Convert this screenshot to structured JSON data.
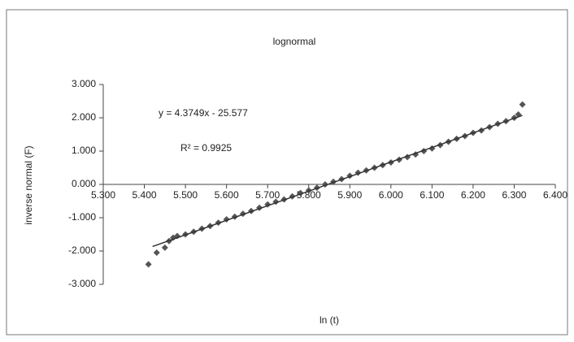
{
  "chart_data": {
    "type": "scatter",
    "title": "lognormal",
    "x_label": "ln (t)",
    "y_label": "inverse normal (F)",
    "annotations": [
      "y = 4.3749x - 25.577",
      "R² = 0.9925"
    ],
    "xlim": [
      5.3,
      6.4
    ],
    "ylim": [
      -3,
      3
    ],
    "xticks": [
      {
        "value": 5.3,
        "label": "5.300"
      },
      {
        "value": 5.4,
        "label": "5.400"
      },
      {
        "value": 5.5,
        "label": "5.500"
      },
      {
        "value": 5.6,
        "label": "5.600"
      },
      {
        "value": 5.7,
        "label": "5.700"
      },
      {
        "value": 5.8,
        "label": "5.800"
      },
      {
        "value": 5.9,
        "label": "5.900"
      },
      {
        "value": 6.0,
        "label": "6.000"
      },
      {
        "value": 6.1,
        "label": "6.100"
      },
      {
        "value": 6.2,
        "label": "6.200"
      },
      {
        "value": 6.3,
        "label": "6.300"
      },
      {
        "value": 6.4,
        "label": "6.400"
      }
    ],
    "yticks": [
      {
        "value": 3,
        "label": "3.000"
      },
      {
        "value": 2,
        "label": "2.000"
      },
      {
        "value": 1,
        "label": "1.000"
      },
      {
        "value": 0,
        "label": "0.000"
      },
      {
        "value": -1,
        "label": "-1.000"
      },
      {
        "value": -2,
        "label": "-2.000"
      },
      {
        "value": -3,
        "label": "-3.000"
      }
    ],
    "series": [
      {
        "color": "#555555",
        "x": [
          5.41,
          5.43,
          5.45,
          5.46,
          5.47,
          5.48,
          5.5,
          5.52,
          5.54,
          5.56,
          5.58,
          5.6,
          5.62,
          5.64,
          5.66,
          5.68,
          5.7,
          5.72,
          5.74,
          5.76,
          5.78,
          5.8,
          5.82,
          5.84,
          5.86,
          5.88,
          5.9,
          5.92,
          5.94,
          5.96,
          5.98,
          6.0,
          6.02,
          6.04,
          6.06,
          6.08,
          6.1,
          6.12,
          6.14,
          6.16,
          6.18,
          6.2,
          6.22,
          6.24,
          6.26,
          6.28,
          6.3,
          6.31,
          6.32
        ],
        "values": [
          -2.4,
          -2.05,
          -1.9,
          -1.7,
          -1.6,
          -1.55,
          -1.5,
          -1.42,
          -1.33,
          -1.25,
          -1.15,
          -1.05,
          -0.97,
          -0.88,
          -0.8,
          -0.7,
          -0.6,
          -0.52,
          -0.45,
          -0.36,
          -0.26,
          -0.18,
          -0.1,
          0.0,
          0.08,
          0.16,
          0.26,
          0.35,
          0.42,
          0.5,
          0.58,
          0.66,
          0.74,
          0.82,
          0.9,
          1.0,
          1.08,
          1.18,
          1.28,
          1.37,
          1.45,
          1.55,
          1.62,
          1.72,
          1.82,
          1.9,
          2.0,
          2.1,
          2.4
        ]
      }
    ],
    "trendline": {
      "color": "#333333",
      "x": [
        5.42,
        6.32
      ],
      "values": [
        -1.865,
        2.072
      ]
    }
  }
}
